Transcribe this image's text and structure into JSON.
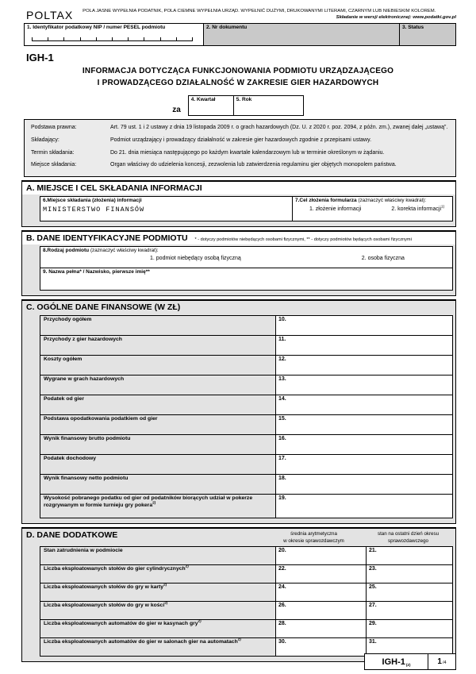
{
  "colors": {
    "cell_dark": "#c9c9c9",
    "cell_light": "#e3e3e3",
    "legal_bg": "#ebebeb",
    "border": "#000000",
    "page_bg": "#ffffff"
  },
  "header": {
    "brand": "POLTAX",
    "note_line1": "POLA JASNE WYPEŁNIA PODATNIK, POLA CIEMNE WYPEŁNIA URZĄD.  WYPEŁNIĆ DUŻYMI, DRUKOWANYMI LITERAMI, CZARNYM LUB NIEBIESKIM KOLOREM.",
    "note_line2": "Składanie w wersji elektronicznej: www.podatki.gov.pl",
    "field1_label": "1.  Identyfikator podatkowy NIP  / numer PESEL podmiotu",
    "field2_label": "2. Nr dokumentu",
    "field3_label": "3. Status"
  },
  "form": {
    "code": "IGH-1",
    "title_line1": "INFORMACJA DOTYCZĄCA FUNKCJONOWANIA PODMIOTU URZĄDZAJĄCEGO",
    "title_line2": "I PROWADZĄCEGO DZIAŁALNOŚĆ W ZAKRESIE GIER HAZARDOWYCH",
    "za_label": "za",
    "quarter_label": "4. Kwartał",
    "year_label": "5. Rok"
  },
  "legal": {
    "rows": [
      {
        "label": "Podstawa prawna:",
        "text": "Art. 79 ust. 1 i 2 ustawy z dnia 19 listopada 2009 r. o  grach hazardowych (Dz. U. z 2020 r. poz. 2094, z późn. zm.), zwanej dalej „ustawą”."
      },
      {
        "label": "Składający:",
        "text": "Podmiot urządzający i prowadzący działalność w zakresie gier hazardowych zgodnie z przepisami ustawy."
      },
      {
        "label": "Termin składania:",
        "text": "Do 21. dnia miesiąca następującego po każdym kwartale kalendarzowym lub w terminie określonym w żądaniu."
      },
      {
        "label": "Miejsce składania:",
        "text": "Organ właściwy do udzielenia koncesji, zezwolenia lub zatwierdzenia regulaminu gier objętych monopolem państwa."
      }
    ]
  },
  "section_a": {
    "title": "A. MIEJSCE I CEL SKŁADANIA INFORMACJI",
    "field6_label": "6.Miejsce składania (złożenia) informacji",
    "field6_value": "MINISTERSTWO FINANSÓW",
    "field7_label": "7.Cel złożenia formularza",
    "field7_hint": "(zaznaczyć właściwy kwadrat):",
    "field7_opt1": "1. złożenie  informacji",
    "field7_opt2": "2. korekta  informacji",
    "field7_opt2_sup": "1)"
  },
  "section_b": {
    "title": "B. DANE IDENTYFIKACYJNE PODMIOTU",
    "note": "* - dotyczy podmiotów niebędących osobami fizycznymi, ** - dotyczy podmiotów będących osobami fizycznymi",
    "field8_label": "8.Rodzaj podmiotu",
    "field8_hint": "(zaznaczyć właściwy kwadrat):",
    "field8_opt1": "1. podmiot  niebędący osobą fizyczną",
    "field8_opt2": "2. osoba fizyczna",
    "field9_label": "9. Nazwa pełna* / Nazwisko, pierwsze imię**"
  },
  "section_c": {
    "title": "C. OGÓLNE DANE FINANSOWE (W ZŁ)",
    "rows": [
      {
        "label": "Przychody ogółem",
        "sup": "",
        "num": "10."
      },
      {
        "label": "Przychody z gier hazardowych",
        "sup": "",
        "num": "11."
      },
      {
        "label": "Koszty ogółem",
        "sup": "",
        "num": "12."
      },
      {
        "label": "Wygrane w grach hazardowych",
        "sup": "",
        "num": "13."
      },
      {
        "label": "Podatek od gier",
        "sup": "",
        "num": "14."
      },
      {
        "label": "Podstawa opodatkowania podatkiem od gier",
        "sup": "",
        "num": "15."
      },
      {
        "label": "Wynik finansowy brutto podmiotu",
        "sup": "",
        "num": "16."
      },
      {
        "label": "Podatek dochodowy",
        "sup": "",
        "num": "17."
      },
      {
        "label": "Wynik finansowy netto podmiotu",
        "sup": "",
        "num": "18."
      },
      {
        "label": "Wysokość pobranego podatku od gier od podatników biorących udział w pokerze rozgrywanym w formie turnieju gry pokera",
        "sup": "2)",
        "num": "19."
      }
    ]
  },
  "section_d": {
    "title": "D. DANE DODATKOWE",
    "col1_header_line1": "średnia arytmetyczna",
    "col1_header_line2": "w okresie sprawozdawczym",
    "col2_header_line1": "stan na ostatni dzień  okresu",
    "col2_header_line2": "sprawozdawczego",
    "rows": [
      {
        "label": "Stan zatrudnienia w podmiocie",
        "sup": "",
        "num1": "20.",
        "num2": "21."
      },
      {
        "label": "Liczba eksploatowanych stołów do gier cylindrycznych",
        "sup": "2)",
        "num1": "22.",
        "num2": "23."
      },
      {
        "label": "Liczba eksploatowanych stołów do gry w karty",
        "sup": "2)",
        "num1": "24.",
        "num2": "25."
      },
      {
        "label": "Liczba eksploatowanych stołów do gry w kości",
        "sup": "2)",
        "num1": "26.",
        "num2": "27."
      },
      {
        "label": "Liczba eksploatowanych automatów do gier w kasynach gry",
        "sup": "2)",
        "num1": "28.",
        "num2": "29."
      },
      {
        "label": "Liczba eksploatowanych automatów do gier w salonach gier na automatach",
        "sup": "2)",
        "num1": "30.",
        "num2": "31."
      }
    ]
  },
  "footer": {
    "form_code": "IGH-1",
    "form_code_sub": "(2)",
    "page": "1",
    "page_total": "/4"
  }
}
